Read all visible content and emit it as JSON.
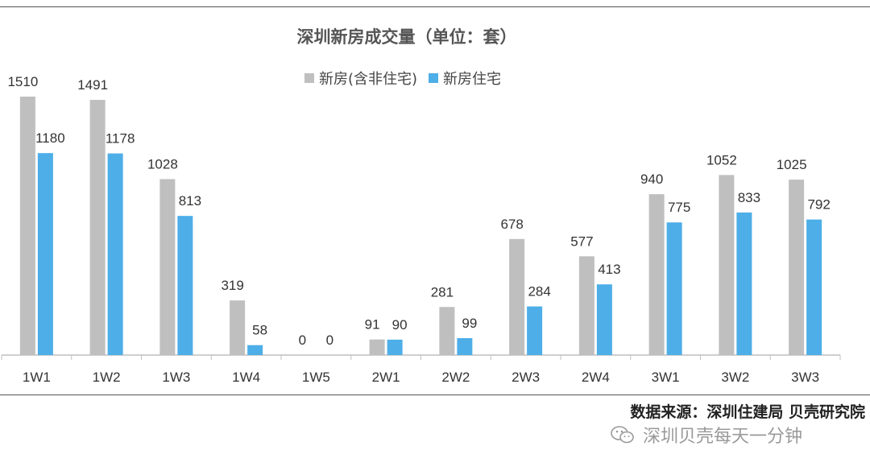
{
  "chart_data": {
    "type": "bar",
    "title": "深圳新房成交量（单位：套）",
    "categories": [
      "1W1",
      "1W2",
      "1W3",
      "1W4",
      "1W5",
      "2W1",
      "2W2",
      "2W3",
      "2W4",
      "3W1",
      "3W2",
      "3W3"
    ],
    "series": [
      {
        "name": "新房(含非住宅)",
        "color": "#bfbfbf",
        "values": [
          1510,
          1491,
          1028,
          319,
          0,
          91,
          281,
          678,
          577,
          940,
          1052,
          1025
        ]
      },
      {
        "name": "新房住宅",
        "color": "#4daee8",
        "values": [
          1180,
          1178,
          813,
          58,
          0,
          90,
          99,
          284,
          413,
          775,
          833,
          792
        ]
      }
    ],
    "ylim": [
      0,
      1510
    ],
    "legend_position": "top-center",
    "grid": false
  },
  "footer": {
    "source": "数据来源：深圳住建局 贝壳研究院",
    "watermark": "深圳贝壳每天一分钟",
    "watermark_icon": "wechat-icon"
  }
}
